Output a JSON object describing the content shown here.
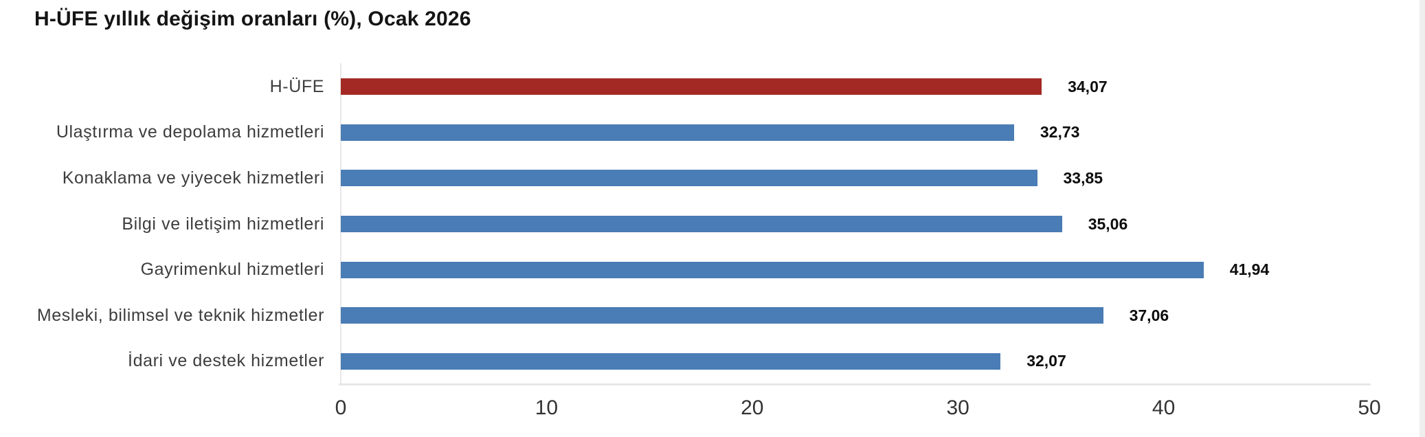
{
  "chart_data": {
    "type": "bar",
    "orientation": "horizontal",
    "title": "H-ÜFE yıllık değişim oranları (%), Ocak 2026",
    "categories": [
      "H-ÜFE",
      "Ulaştırma ve depolama hizmetleri",
      "Konaklama ve yiyecek hizmetleri",
      "Bilgi ve iletişim hizmetleri",
      "Gayrimenkul hizmetleri",
      "Mesleki, bilimsel ve teknik hizmetler",
      "İdari ve destek hizmetler"
    ],
    "values": [
      34.07,
      32.73,
      33.85,
      35.06,
      41.94,
      37.06,
      32.07
    ],
    "value_labels": [
      "34,07",
      "32,73",
      "33,85",
      "35,06",
      "41,94",
      "37,06",
      "32,07"
    ],
    "xlabel": "",
    "ylabel": "",
    "xlim": [
      0,
      50
    ],
    "x_ticks": [
      "0",
      "10",
      "20",
      "30",
      "40",
      "50"
    ],
    "grid": false,
    "legend": false,
    "highlight_index": 0,
    "colors": {
      "highlight_bar": "#a32a24",
      "default_bar": "#4a7cb5",
      "axis_line": "#e7e7e7",
      "title_text": "#141414",
      "category_text": "#3d3d3d",
      "tick_text": "#333333",
      "value_text": "#0d0d0d"
    }
  }
}
